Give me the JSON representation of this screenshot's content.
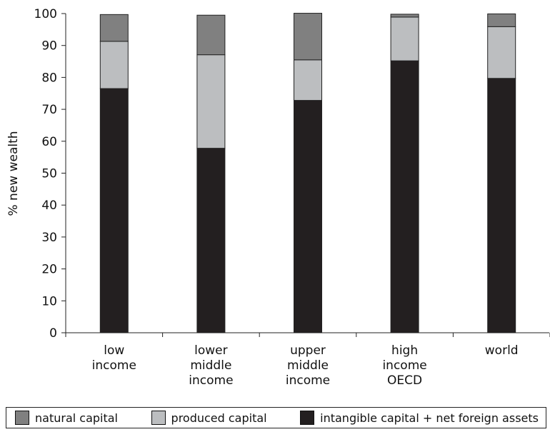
{
  "chart_data": {
    "type": "bar",
    "stacked": true,
    "title": "",
    "xlabel": "",
    "ylabel": "% new wealth",
    "ylim": [
      0,
      100
    ],
    "yticks": [
      0,
      10,
      20,
      30,
      40,
      50,
      60,
      70,
      80,
      90,
      100
    ],
    "categories": [
      [
        "low",
        "income"
      ],
      [
        "lower",
        "middle",
        "income"
      ],
      [
        "upper",
        "middle",
        "income"
      ],
      [
        "high",
        "income",
        "OECD"
      ],
      [
        "world"
      ]
    ],
    "series": [
      {
        "name": "intangible capital + net foreign assets",
        "color": "#231f20",
        "values": [
          76.5,
          57.8,
          72.8,
          85.2,
          79.7
        ]
      },
      {
        "name": "produced capital",
        "color": "#bcbec0",
        "values": [
          14.8,
          29.3,
          12.7,
          13.7,
          16.2
        ]
      },
      {
        "name": "natural capital",
        "color": "#808080",
        "values": [
          8.4,
          12.4,
          14.6,
          0.9,
          4.0
        ]
      }
    ],
    "legend": {
      "position": "bottom",
      "order": [
        "natural capital",
        "produced capital",
        "intangible capital + net foreign assets"
      ]
    },
    "grid": false
  }
}
